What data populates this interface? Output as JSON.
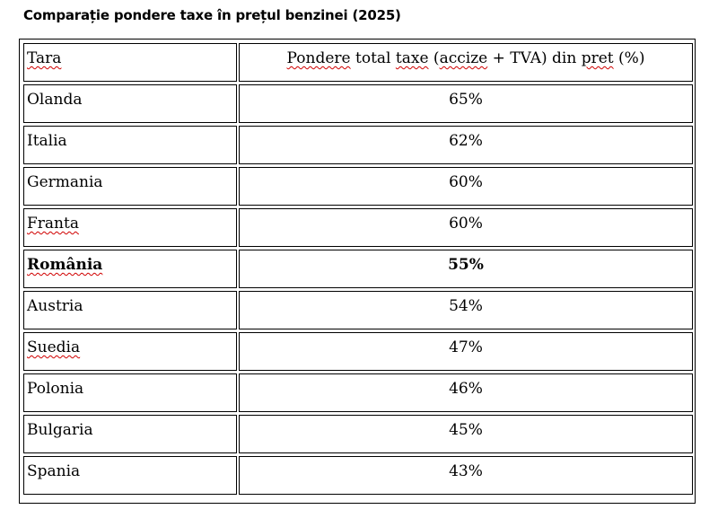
{
  "title": "Comparație pondere taxe în prețul benzinei (2025)",
  "table": {
    "headers": {
      "country": "Tara",
      "share_prefix_underlined": "Pondere",
      "share_middle": " total ",
      "share_middle_underlined": "taxe",
      "share_mid2": " (",
      "share_accize": "accize",
      "share_mid3": " + TVA) din ",
      "share_pret": "pret",
      "share_suffix": " (%)"
    },
    "rows": [
      {
        "country": "Olanda",
        "share": "65%"
      },
      {
        "country": "Italia",
        "share": "62%"
      },
      {
        "country": "Germania",
        "share": "60%"
      },
      {
        "country": "Franta",
        "share": "60%"
      },
      {
        "country": "România",
        "share": "55%"
      },
      {
        "country": "Austria",
        "share": "54%"
      },
      {
        "country": "Suedia",
        "share": "47%"
      },
      {
        "country": "Polonia",
        "share": "46%"
      },
      {
        "country": "Bulgaria",
        "share": "45%"
      },
      {
        "country": "Spania",
        "share": "43%"
      }
    ]
  }
}
